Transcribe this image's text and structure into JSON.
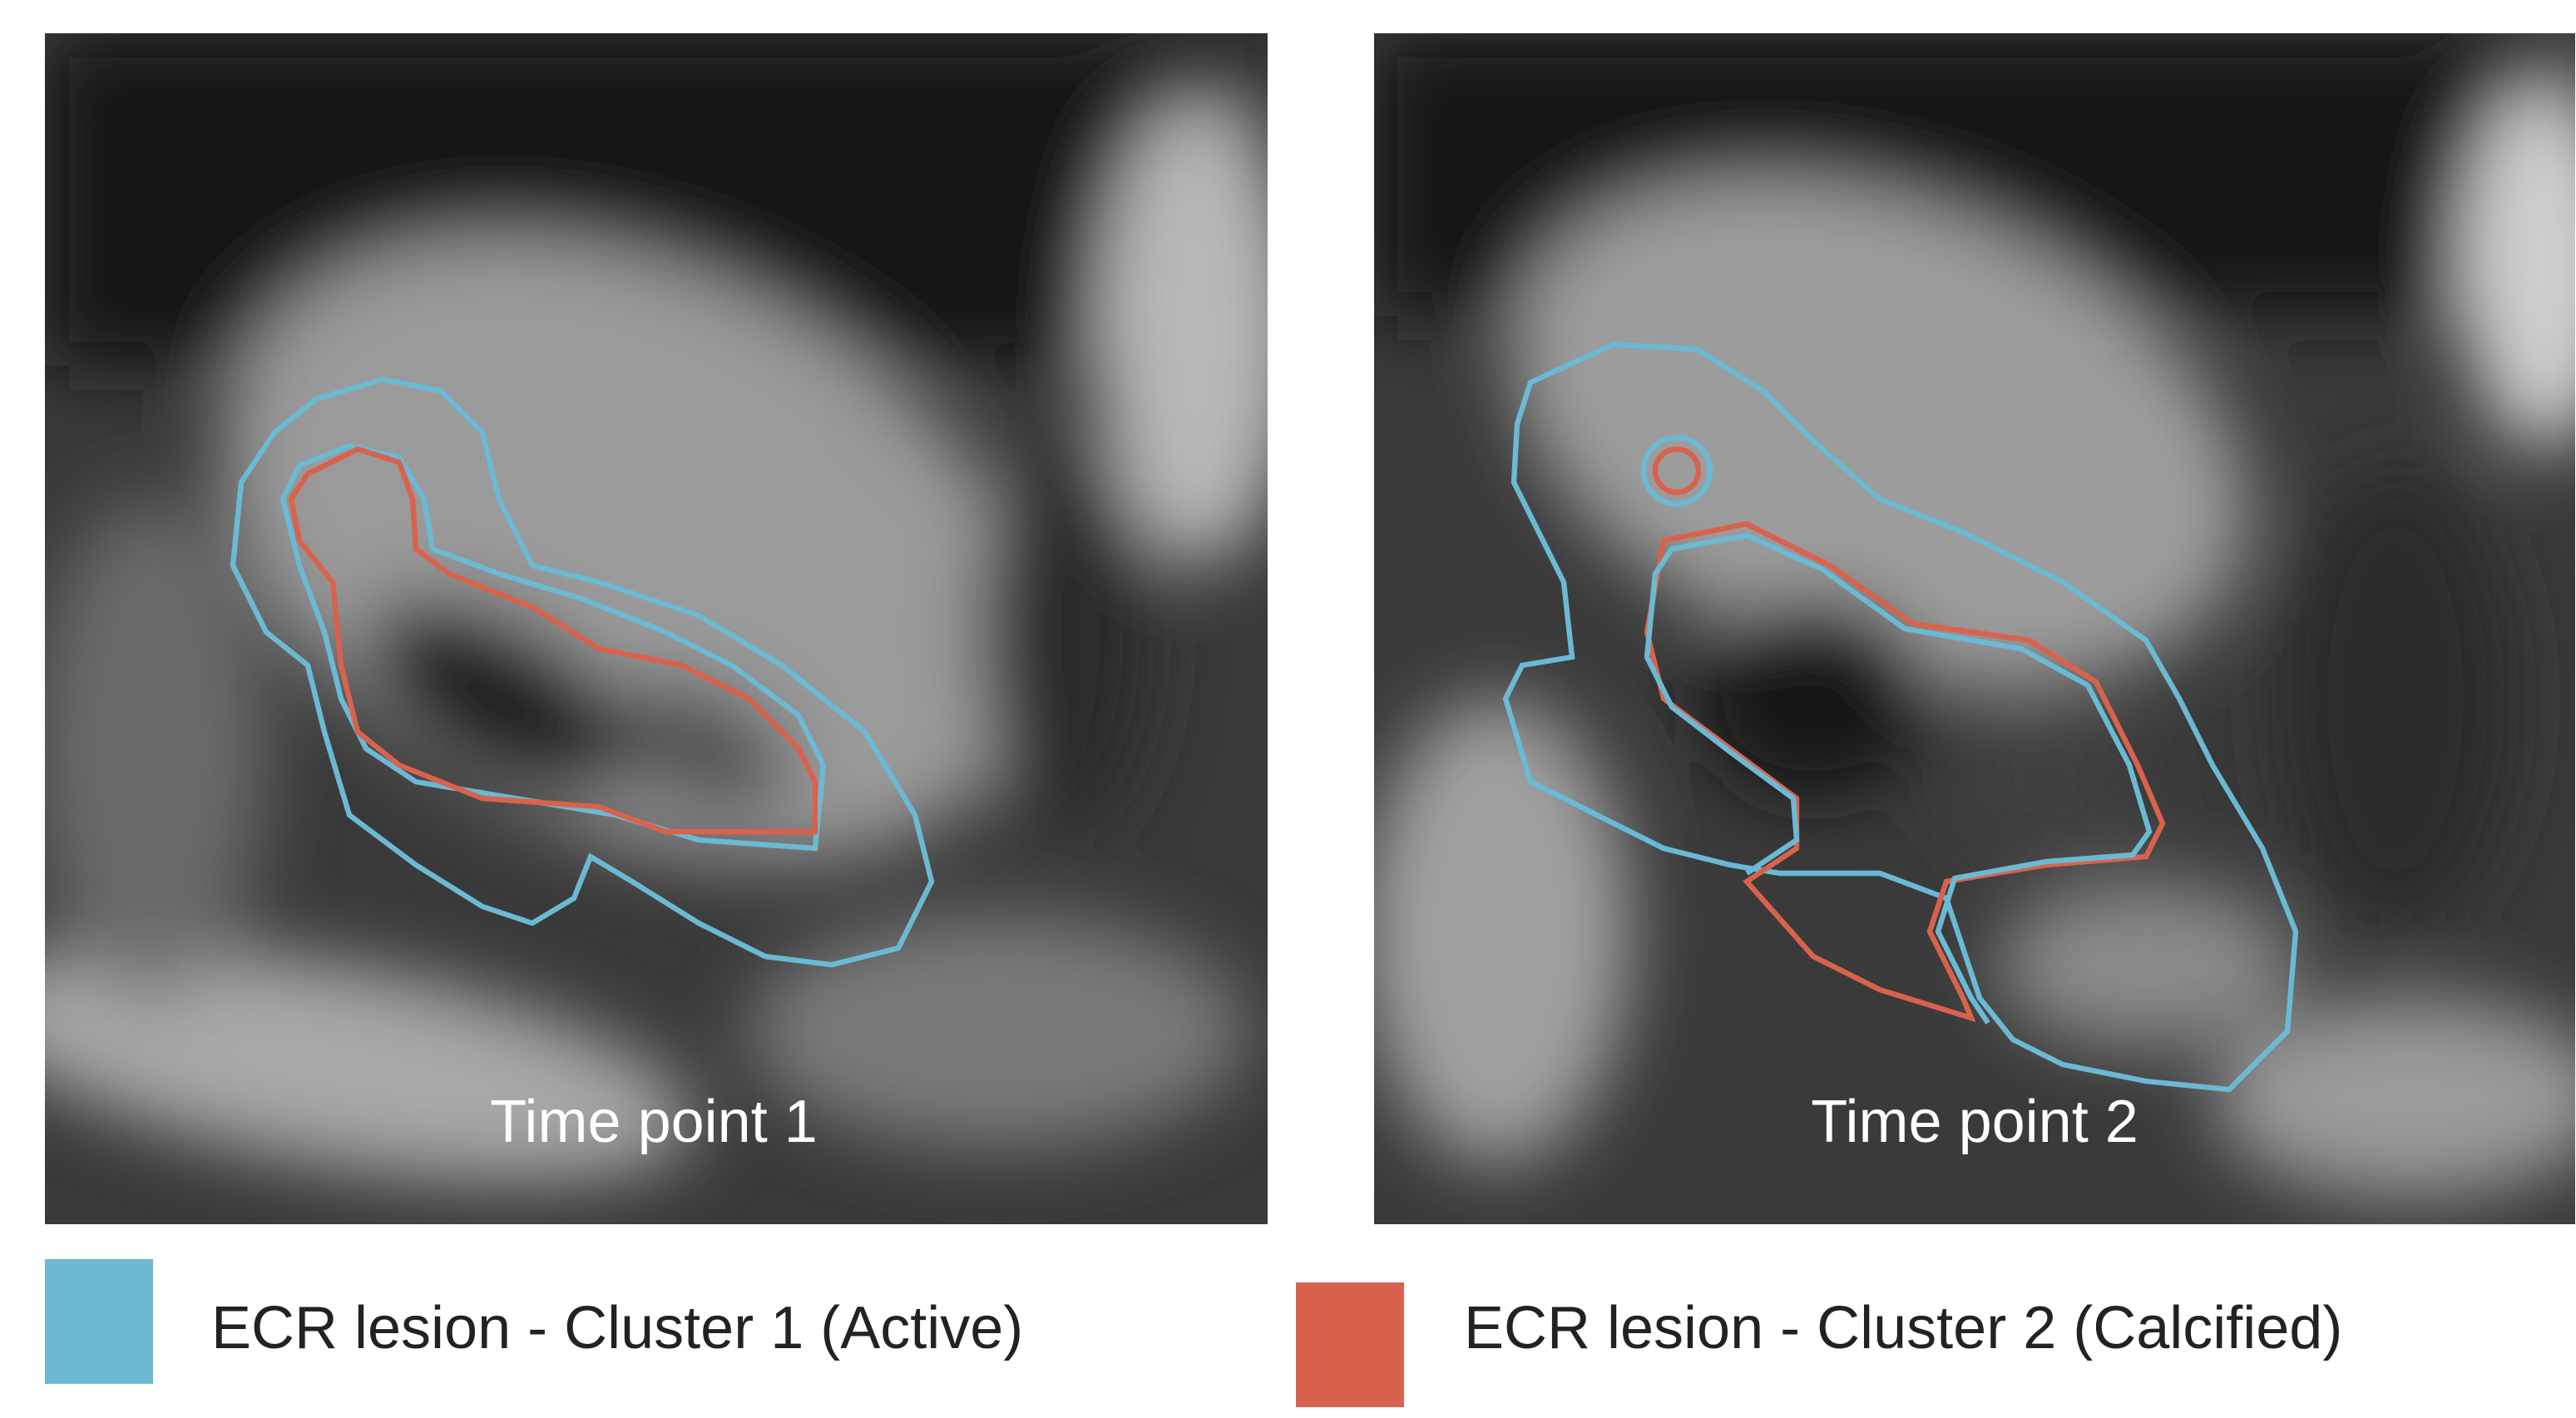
{
  "panels": [
    {
      "label": "Time point 1"
    },
    {
      "label": "Time point 2"
    }
  ],
  "legend": [
    {
      "label": "ECR lesion - Cluster 1 (Active)",
      "color": "#6bb9d3"
    },
    {
      "label": "ECR lesion - Cluster 2 (Calcified)",
      "color": "#d9624d"
    }
  ]
}
